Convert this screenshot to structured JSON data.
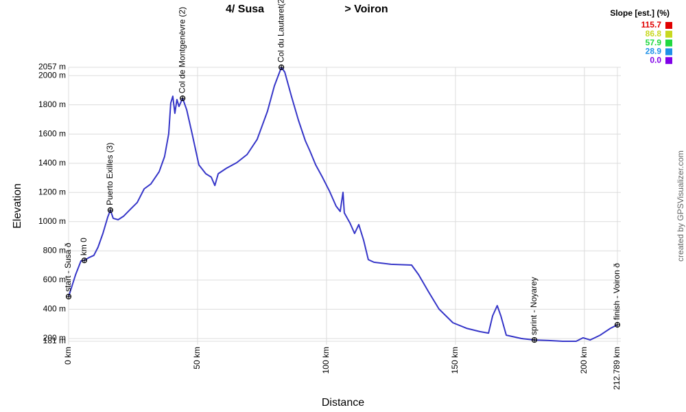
{
  "chart_data": {
    "type": "line",
    "title": [
      "4/ Susa",
      "> Voiron"
    ],
    "x_label": "Distance",
    "y_label": "Elevation",
    "credit": "created by GPSVisualizer.com",
    "xlim": [
      0,
      212.789
    ],
    "ylim": [
      181,
      2057
    ],
    "xticks": [
      {
        "value": 0,
        "label": "0 km"
      },
      {
        "value": 50,
        "label": "50 km"
      },
      {
        "value": 100,
        "label": "100 km"
      },
      {
        "value": 150,
        "label": "150 km"
      },
      {
        "value": 200,
        "label": "200 km"
      },
      {
        "value": 212.789,
        "label": "212.789 km"
      }
    ],
    "yticks": [
      {
        "value": 181,
        "label": "181 m"
      },
      {
        "value": 200,
        "label": "200 m"
      },
      {
        "value": 400,
        "label": "400 m"
      },
      {
        "value": 600,
        "label": "600 m"
      },
      {
        "value": 800,
        "label": "800 m"
      },
      {
        "value": 1000,
        "label": "1000 m"
      },
      {
        "value": 1200,
        "label": "1200 m"
      },
      {
        "value": 1400,
        "label": "1400 m"
      },
      {
        "value": 1600,
        "label": "1600 m"
      },
      {
        "value": 1800,
        "label": "1800 m"
      },
      {
        "value": 2000,
        "label": "2000 m"
      },
      {
        "value": 2057,
        "label": "2057 m"
      }
    ],
    "grid": true,
    "series": [
      {
        "color": "#3535c8",
        "x": [
          0,
          2.7,
          4.8,
          6.1,
          8.0,
          9.8,
          11.4,
          13.3,
          15.2,
          16.2,
          17.3,
          19.2,
          21.3,
          23.9,
          26.6,
          29.3,
          31.9,
          35.1,
          37.2,
          38.8,
          39.6,
          40.4,
          41.2,
          42.0,
          42.8,
          44.2,
          45.8,
          47.9,
          50.5,
          53.2,
          55.3,
          56.7,
          58.0,
          61.2,
          65.2,
          69.2,
          73.1,
          77.1,
          79.8,
          82.5,
          83.8,
          86.4,
          89.1,
          91.8,
          93.6,
          95.8,
          98.4,
          101.1,
          103.7,
          105.3,
          106.4,
          106.9,
          109.1,
          110.9,
          112.5,
          114.4,
          116.2,
          118.4,
          125.0,
          133.0,
          135.7,
          139.6,
          143.6,
          149.0,
          154.3,
          159.6,
          162.8,
          164.4,
          166.2,
          167.6,
          169.7,
          175.6,
          180.6,
          186.2,
          191.5,
          196.8,
          199.5,
          202.2,
          206.1,
          210.1,
          212.789
        ],
        "values": [
          487,
          637,
          731,
          735,
          755,
          769,
          825,
          919,
          1032,
          1079,
          1023,
          1013,
          1037,
          1084,
          1131,
          1225,
          1258,
          1342,
          1446,
          1601,
          1812,
          1859,
          1742,
          1836,
          1789,
          1845,
          1765,
          1601,
          1389,
          1328,
          1305,
          1248,
          1328,
          1366,
          1404,
          1460,
          1563,
          1756,
          1930,
          2057,
          2024,
          1859,
          1695,
          1554,
          1483,
          1389,
          1305,
          1211,
          1107,
          1070,
          1201,
          1060,
          990,
          919,
          980,
          872,
          740,
          722,
          708,
          703,
          637,
          519,
          402,
          308,
          270,
          247,
          237,
          355,
          425,
          355,
          223,
          200,
          190,
          186,
          181,
          181,
          205,
          190,
          223,
          270,
          294
        ]
      }
    ],
    "waypoints": [
      {
        "label": "start - Susa ð",
        "x": 0,
        "y": 487
      },
      {
        "label": "km 0",
        "x": 6.1,
        "y": 735
      },
      {
        "label": "Puerto Exilles (3)",
        "x": 16.2,
        "y": 1079
      },
      {
        "label": "Col de Montgenèvre (2)",
        "x": 44.2,
        "y": 1845
      },
      {
        "label": "Col du Lautaret(2",
        "x": 82.5,
        "y": 2057
      },
      {
        "label": "sprint - Noyarey",
        "x": 180.6,
        "y": 190
      },
      {
        "label": "finish - Voiron ð",
        "x": 212.789,
        "y": 294
      }
    ],
    "slope_legend": {
      "title": "Slope [est.] (%)",
      "items": [
        {
          "value": 115.7,
          "color": "#e00000"
        },
        {
          "value": 86.8,
          "color": "#c8d820"
        },
        {
          "value": 57.9,
          "color": "#20d840"
        },
        {
          "value": 28.9,
          "color": "#1e90e8"
        },
        {
          "value": {
            "value": 0,
            "label": "0.0"
          },
          "color": "#8000e8"
        }
      ]
    }
  }
}
